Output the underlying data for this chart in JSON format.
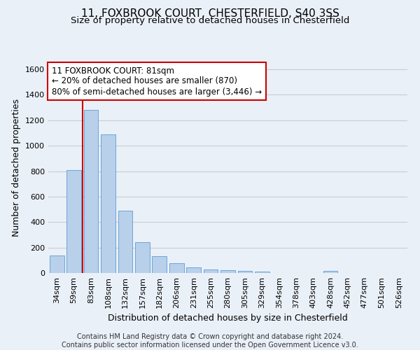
{
  "title": "11, FOXBROOK COURT, CHESTERFIELD, S40 3SS",
  "subtitle": "Size of property relative to detached houses in Chesterfield",
  "xlabel": "Distribution of detached houses by size in Chesterfield",
  "ylabel": "Number of detached properties",
  "categories": [
    "34sqm",
    "59sqm",
    "83sqm",
    "108sqm",
    "132sqm",
    "157sqm",
    "182sqm",
    "206sqm",
    "231sqm",
    "255sqm",
    "280sqm",
    "305sqm",
    "329sqm",
    "354sqm",
    "378sqm",
    "403sqm",
    "428sqm",
    "452sqm",
    "477sqm",
    "501sqm",
    "526sqm"
  ],
  "values": [
    140,
    810,
    1280,
    1090,
    490,
    240,
    130,
    75,
    45,
    30,
    20,
    15,
    10,
    0,
    0,
    0,
    15,
    0,
    0,
    0,
    0
  ],
  "bar_color": "#b8d0ea",
  "bar_edge_color": "#5b9bd5",
  "vline_color": "#cc0000",
  "vline_x": 1.5,
  "annotation_text": "11 FOXBROOK COURT: 81sqm\n← 20% of detached houses are smaller (870)\n80% of semi-detached houses are larger (3,446) →",
  "annotation_box_color": "#ffffff",
  "annotation_box_edge": "#cc0000",
  "ylim": [
    0,
    1650
  ],
  "yticks": [
    0,
    200,
    400,
    600,
    800,
    1000,
    1200,
    1400,
    1600
  ],
  "grid_color": "#cccccc",
  "bg_color": "#eaf0f8",
  "footer_text": "Contains HM Land Registry data © Crown copyright and database right 2024.\nContains public sector information licensed under the Open Government Licence v3.0.",
  "title_fontsize": 11,
  "subtitle_fontsize": 9.5,
  "xlabel_fontsize": 9,
  "ylabel_fontsize": 9,
  "annotation_fontsize": 8.5,
  "footer_fontsize": 7,
  "tick_fontsize": 8
}
